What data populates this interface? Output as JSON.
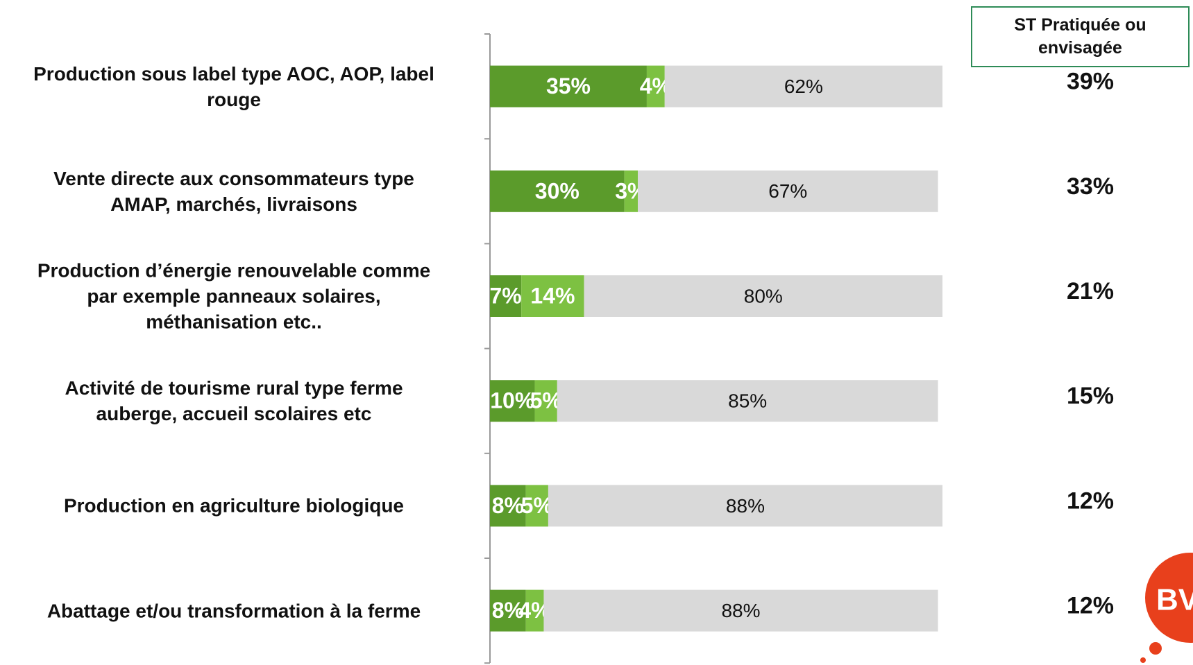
{
  "chart_data": {
    "type": "stacked-bar-horizontal",
    "categories": [
      "Production sous label type AOC, AOP, label\nrouge",
      "Vente directe aux consommateurs type\nAMAP, marchés, livraisons",
      "Production d’énergie renouvelable comme\npar exemple panneaux solaires,\nméthanisation etc..",
      "Activité de tourisme rural type ferme\nauberge, accueil scolaires etc",
      "Production en agriculture biologique",
      "Abattage et/ou transformation à la ferme"
    ],
    "series": [
      {
        "color": "#5b9b2b",
        "values": [
          35,
          30,
          7,
          10,
          8,
          8
        ],
        "value_labels": [
          "35%",
          "30%",
          "7%",
          "10%",
          "8%",
          "8%"
        ]
      },
      {
        "color": "#7dc142",
        "values": [
          4,
          3,
          14,
          5,
          5,
          4
        ],
        "value_labels": [
          "4%",
          "3%",
          "14%",
          "5%",
          "5%",
          "4%"
        ]
      },
      {
        "color": "#d9d9d9",
        "values": [
          62,
          67,
          80,
          85,
          88,
          88
        ],
        "value_labels": [
          "62%",
          "67%",
          "80%",
          "85%",
          "88%",
          "88%"
        ]
      }
    ],
    "totals": {
      "title": "ST Pratiquée ou\nenvisagée",
      "values": [
        39,
        33,
        21,
        15,
        12,
        12
      ],
      "value_labels": [
        "39%",
        "33%",
        "21%",
        "15%",
        "12%",
        "12%"
      ]
    },
    "logo": "BV"
  }
}
